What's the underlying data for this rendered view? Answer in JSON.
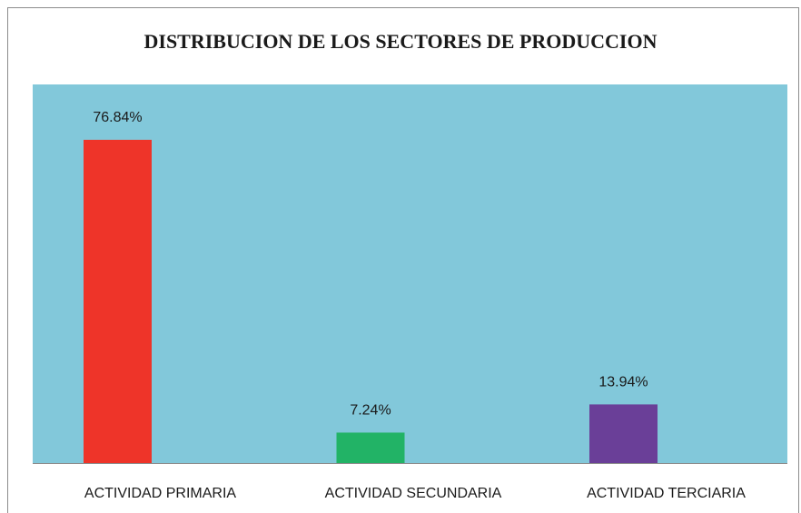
{
  "chart_data": {
    "type": "bar",
    "title": "DISTRIBUCION DE LOS SECTORES DE PRODUCCION",
    "categories": [
      "ACTIVIDAD PRIMARIA",
      "ACTIVIDAD SECUNDARIA",
      "ACTIVIDAD TERCIARIA"
    ],
    "values": [
      76.84,
      7.24,
      13.94
    ],
    "value_labels": [
      "76.84%",
      "7.24%",
      "13.94%"
    ],
    "colors": [
      "#ee3429",
      "#22b366",
      "#6a3f98"
    ],
    "background": "#82c8da",
    "ylim": [
      0,
      90
    ]
  }
}
